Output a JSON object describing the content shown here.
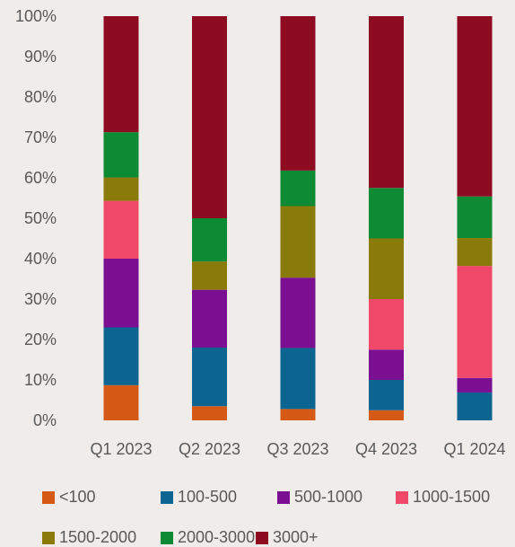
{
  "chart_data": {
    "type": "bar",
    "stacked": true,
    "percent": true,
    "categories": [
      "Q1 2023",
      "Q2 2023",
      "Q3 2023",
      "Q4 2023",
      "Q1 2024"
    ],
    "ylim": [
      0,
      100
    ],
    "y_ticks": [
      "0%",
      "10%",
      "20%",
      "30%",
      "40%",
      "50%",
      "60%",
      "70%",
      "80%",
      "90%",
      "100%"
    ],
    "grid": false,
    "legend_position": "bottom",
    "series": [
      {
        "name": "<100",
        "color": "#d55a16",
        "values": [
          8.7,
          3.5,
          2.8,
          2.5,
          0.0
        ]
      },
      {
        "name": "100-500",
        "color": "#0b6590",
        "values": [
          14.3,
          14.5,
          15.1,
          7.5,
          6.9
        ]
      },
      {
        "name": "500-1000",
        "color": "#7a0f91",
        "values": [
          17.0,
          14.3,
          17.4,
          7.5,
          3.6
        ]
      },
      {
        "name": "1000-1500",
        "color": "#f04868",
        "values": [
          14.3,
          0.0,
          0.0,
          12.5,
          27.7
        ]
      },
      {
        "name": "1500-2000",
        "color": "#8a7a09",
        "values": [
          5.8,
          7.0,
          17.7,
          15.0,
          6.9
        ]
      },
      {
        "name": "2000-3000",
        "color": "#0c8b34",
        "values": [
          11.2,
          10.7,
          8.8,
          12.5,
          10.3
        ]
      },
      {
        "name": "3000+",
        "color": "#8d0c22",
        "values": [
          28.7,
          50.0,
          38.2,
          42.5,
          44.6
        ]
      }
    ]
  }
}
